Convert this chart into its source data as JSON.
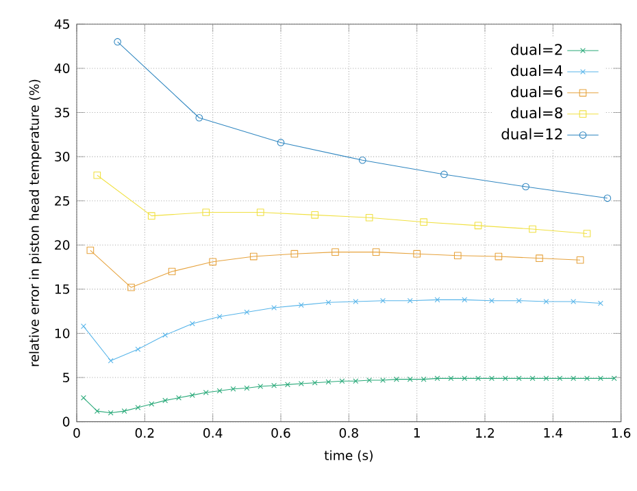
{
  "chart_data": {
    "type": "line",
    "xlabel": "time (s)",
    "ylabel": "relative error in piston head temperature (%)",
    "xlim": [
      0,
      1.6
    ],
    "ylim": [
      0,
      45
    ],
    "xticks": [
      0,
      0.2,
      0.4,
      0.6,
      0.8,
      1,
      1.2,
      1.4,
      1.6
    ],
    "yticks": [
      0,
      5,
      10,
      15,
      20,
      25,
      30,
      35,
      40,
      45
    ],
    "grid": true,
    "legend": "top right",
    "line_style": "solid",
    "series": [
      {
        "name": "dual=2",
        "color": "#26a877",
        "marker": "cross",
        "x": [
          0.02,
          0.06,
          0.1,
          0.14,
          0.18,
          0.22,
          0.26,
          0.3,
          0.34,
          0.38,
          0.42,
          0.46,
          0.5,
          0.54,
          0.58,
          0.62,
          0.66,
          0.7,
          0.74,
          0.78,
          0.82,
          0.86,
          0.9,
          0.94,
          0.98,
          1.02,
          1.06,
          1.1,
          1.14,
          1.18,
          1.22,
          1.26,
          1.3,
          1.34,
          1.38,
          1.42,
          1.46,
          1.5,
          1.54,
          1.58
        ],
        "values": [
          2.7,
          1.2,
          1.0,
          1.2,
          1.6,
          2.0,
          2.4,
          2.7,
          3.0,
          3.3,
          3.5,
          3.7,
          3.8,
          4.0,
          4.1,
          4.2,
          4.3,
          4.4,
          4.5,
          4.6,
          4.6,
          4.7,
          4.7,
          4.8,
          4.8,
          4.8,
          4.9,
          4.9,
          4.9,
          4.9,
          4.9,
          4.9,
          4.9,
          4.9,
          4.9,
          4.9,
          4.9,
          4.9,
          4.9,
          4.9
        ]
      },
      {
        "name": "dual=4",
        "color": "#56b4e9",
        "marker": "cross",
        "x": [
          0.02,
          0.1,
          0.18,
          0.26,
          0.34,
          0.42,
          0.5,
          0.58,
          0.66,
          0.74,
          0.82,
          0.9,
          0.98,
          1.06,
          1.14,
          1.22,
          1.3,
          1.38,
          1.46,
          1.54
        ],
        "values": [
          10.8,
          6.9,
          8.2,
          9.8,
          11.1,
          11.9,
          12.4,
          12.9,
          13.2,
          13.5,
          13.6,
          13.7,
          13.7,
          13.8,
          13.8,
          13.7,
          13.7,
          13.6,
          13.6,
          13.4
        ]
      },
      {
        "name": "dual=6",
        "color": "#e6a23c",
        "marker": "square",
        "x": [
          0.04,
          0.16,
          0.28,
          0.4,
          0.52,
          0.64,
          0.76,
          0.88,
          1.0,
          1.12,
          1.24,
          1.36,
          1.48
        ],
        "values": [
          19.4,
          15.2,
          17.0,
          18.1,
          18.7,
          19.0,
          19.2,
          19.2,
          19.0,
          18.8,
          18.7,
          18.5,
          18.3
        ]
      },
      {
        "name": "dual=8",
        "color": "#f0e040",
        "marker": "square",
        "x": [
          0.06,
          0.22,
          0.38,
          0.54,
          0.7,
          0.86,
          1.02,
          1.18,
          1.34,
          1.5
        ],
        "values": [
          27.9,
          23.3,
          23.7,
          23.7,
          23.4,
          23.1,
          22.6,
          22.2,
          21.8,
          21.3
        ]
      },
      {
        "name": "dual=12",
        "color": "#2f86c0",
        "marker": "circle",
        "x": [
          0.12,
          0.36,
          0.6,
          0.84,
          1.08,
          1.32,
          1.56
        ],
        "values": [
          43.0,
          34.4,
          31.6,
          29.6,
          28.0,
          26.6,
          25.3
        ]
      }
    ]
  }
}
